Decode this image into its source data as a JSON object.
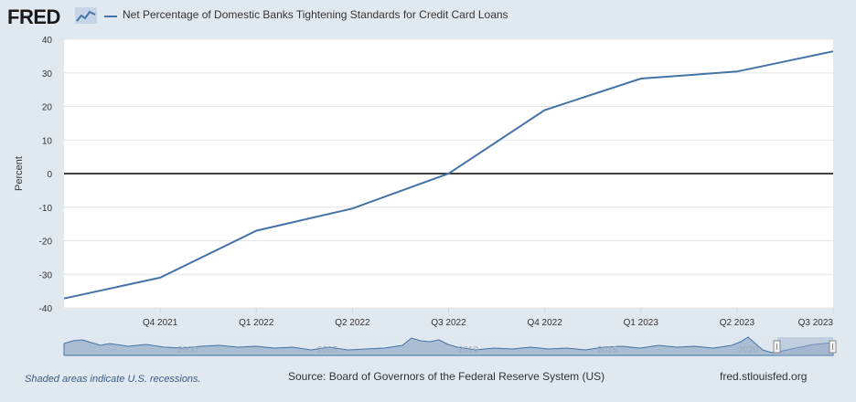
{
  "brand": "FRED",
  "legend": {
    "label": "Net Percentage of Domestic Banks Tightening Standards for Credit Card Loans"
  },
  "footer": {
    "recession_note": "Shaded areas indicate U.S. recessions.",
    "source": "Source: Board of Governors of the Federal Reserve System (US)",
    "site": "fred.stlouisfed.org"
  },
  "navigator": {
    "year_labels": [
      "1995",
      "2000",
      "2005",
      "2010",
      "2015",
      "2020"
    ]
  },
  "colors": {
    "series": "#4572a7",
    "background": "#e1e9f0",
    "plot": "#ffffff",
    "zero_line": "#000000"
  },
  "chart_data": {
    "type": "line",
    "title": "Net Percentage of Domestic Banks Tightening Standards for Credit Card Loans",
    "xlabel": "",
    "ylabel": "Percent",
    "ylim": [
      -40,
      40
    ],
    "yticks": [
      40,
      30,
      20,
      10,
      0,
      -10,
      -20,
      -30,
      -40
    ],
    "xtick_labels": [
      "Q4 2021",
      "Q1 2022",
      "Q2 2022",
      "Q3 2022",
      "Q4 2022",
      "Q1 2023",
      "Q2 2023",
      "Q3 2023"
    ],
    "x": [
      "Q3 2021",
      "Q4 2021",
      "Q1 2022",
      "Q2 2022",
      "Q3 2022",
      "Q4 2022",
      "Q1 2023",
      "Q2 2023",
      "Q3 2023"
    ],
    "series": [
      {
        "name": "Net Percentage of Domestic Banks Tightening Standards for Credit Card Loans",
        "values": [
          -37.2,
          -31.0,
          -17.0,
          -10.4,
          0.0,
          18.9,
          28.3,
          30.4,
          36.4
        ]
      }
    ]
  }
}
